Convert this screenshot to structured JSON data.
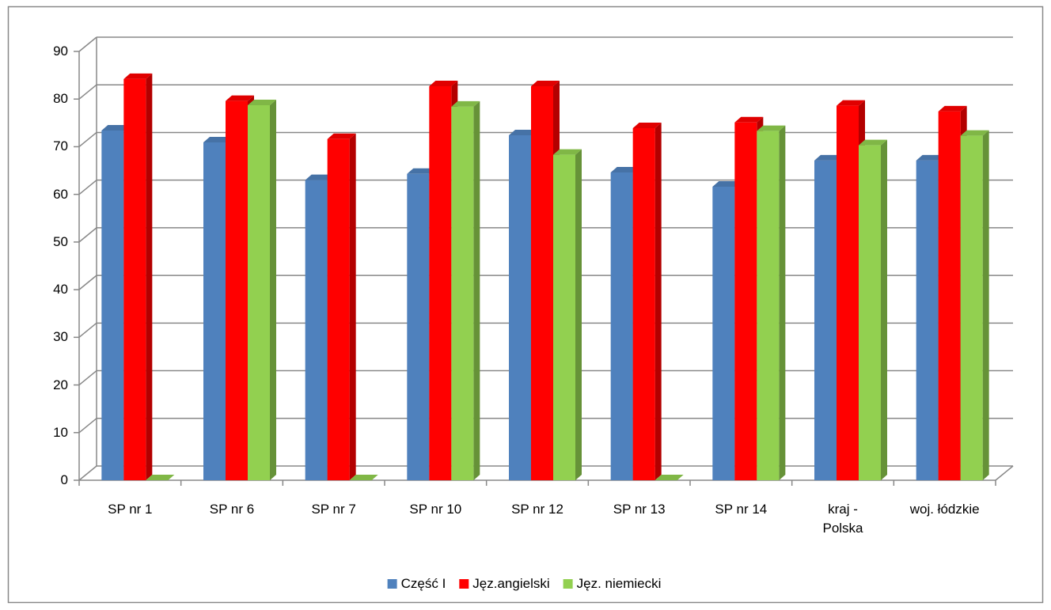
{
  "chart_data": {
    "type": "bar3d",
    "categories": [
      "SP nr 1",
      "SP nr 6",
      "SP nr 7",
      "SP nr 10",
      "SP nr 12",
      "SP nr 13",
      "SP nr 14",
      "kraj - Polska",
      "woj. łódzkie"
    ],
    "series": [
      {
        "name": "Część I",
        "color": "#4f81bd",
        "values": [
          73.4,
          70.9,
          63.0,
          64.3,
          72.4,
          64.6,
          61.6,
          67.1,
          67.1
        ]
      },
      {
        "name": "Jęz.angielski",
        "color": "#ff0000",
        "values": [
          84.2,
          79.6,
          71.6,
          82.7,
          82.7,
          73.9,
          75.1,
          78.6,
          77.4
        ]
      },
      {
        "name": "Jęz. niemiecki",
        "color": "#92d050",
        "values": [
          0,
          78.7,
          0,
          78.4,
          68.3,
          0,
          73.3,
          70.3,
          72.3
        ]
      }
    ],
    "ylim": [
      0,
      90
    ],
    "yticks": [
      0,
      10,
      20,
      30,
      40,
      50,
      60,
      70,
      80,
      90
    ],
    "grid": true,
    "legend": "bottom"
  }
}
